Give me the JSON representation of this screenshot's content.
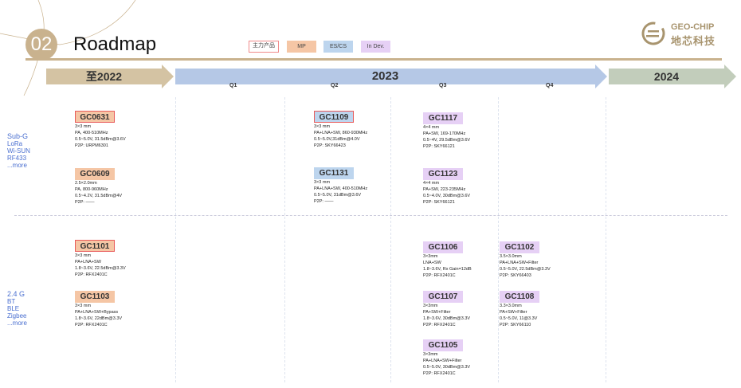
{
  "header": {
    "number": "02",
    "title": "Roadmap"
  },
  "legend": [
    {
      "label": "主力产品",
      "color": "#ffffff"
    },
    {
      "label": "MP",
      "color": "#f5c6a5"
    },
    {
      "label": "ES/CS",
      "color": "#bdd5ee"
    },
    {
      "label": "In Dev.",
      "color": "#e6d0f5"
    }
  ],
  "logo": {
    "en": "GEO-CHIP",
    "cn": "地芯科技"
  },
  "timeline": {
    "periods": [
      "至2022",
      "2023",
      "2024"
    ],
    "quarters": [
      "Q1",
      "Q2",
      "Q3",
      "Q4"
    ]
  },
  "categories": [
    {
      "title": "Sub-G",
      "items": [
        "LoRa",
        "Wi-SUN",
        "RF433",
        "...more"
      ]
    },
    {
      "title": "2.4 G",
      "items": [
        "BT",
        "BLE",
        "Zigbee",
        "...more"
      ]
    }
  ],
  "chips": [
    {
      "name": "GC0631",
      "status": "MP",
      "main": true,
      "lines": [
        "3×3 mm",
        "PA, 400-510MHz",
        "0.5~5.0V, 31.5dBm@3.6V",
        "P2P: URPM6301"
      ]
    },
    {
      "name": "GC0609",
      "status": "MP",
      "main": false,
      "lines": [
        "2.5×2.0mm",
        "PA, 800-960MHz",
        "0.5~4.2V, 31.5dBm@4V",
        "P2P: ——"
      ]
    },
    {
      "name": "GC1109",
      "status": "ES/CS",
      "main": true,
      "lines": [
        "3×3 mm",
        "PA+LNA+SW, 860-930MHz",
        "0.5~5.0V,31dBm@4.0V",
        "P2P: SKY66423"
      ]
    },
    {
      "name": "GC1131",
      "status": "ES/CS",
      "main": false,
      "lines": [
        "3×3 mm",
        "PA+LNA+SW, 400-510MHz",
        "0.5~5.0V, 31dBm@3.6V",
        "P2P: ——"
      ]
    },
    {
      "name": "GC1117",
      "status": "In Dev.",
      "main": false,
      "lines": [
        "4×4 mm",
        "PA+SW, 169-170MHz",
        "0.5~4V, 29.5dBm@3.6V",
        "P2P: SKY66121"
      ]
    },
    {
      "name": "GC1123",
      "status": "In Dev.",
      "main": false,
      "lines": [
        "4×4 mm",
        "PA+SW, 223-235MHz",
        "0.5~4.0V, 30dBm@3.6V",
        "P2P: SKY66121"
      ]
    },
    {
      "name": "GC1101",
      "status": "MP",
      "main": true,
      "lines": [
        "3×3 mm",
        "PA+LNA+SW",
        "1.8~3.6V, 22.5dBm@3.3V",
        "P2P: RFX2401C"
      ]
    },
    {
      "name": "GC1103",
      "status": "MP",
      "main": false,
      "lines": [
        "3×3 mm",
        "PA+LNA+SW+Bypass",
        "1.8~3.6V, 22dBm@3.3V",
        "P2P: RFX2401C"
      ]
    },
    {
      "name": "GC1106",
      "status": "In Dev.",
      "main": false,
      "lines": [
        "3×3mm",
        "LNA+SW",
        "1.8~3.6V, Rx Gain=12dB",
        "P2P: RFX2401C"
      ]
    },
    {
      "name": "GC1107",
      "status": "In Dev.",
      "main": false,
      "lines": [
        "3×3mm",
        "PA+SW+Filter",
        "1.8~3.6V, 30dBm@3.3V",
        "P2P: RFX2401C"
      ]
    },
    {
      "name": "GC1105",
      "status": "In Dev.",
      "main": false,
      "lines": [
        "3×3mm",
        "PA+LNA+SW+Filter",
        "0.5~5.0V, 30dBm@3.3V",
        "P2P: RFX2401C"
      ]
    },
    {
      "name": "GC1102",
      "status": "In Dev.",
      "main": false,
      "lines": [
        "3.5×3.0mm",
        "PA+LNA+SW+Filter",
        "0.5~5.0V, 22.5dBm@3.3V",
        "P2P: SKY66403"
      ]
    },
    {
      "name": "GC1108",
      "status": "In Dev.",
      "main": false,
      "lines": [
        "3.3×3.0mm",
        "PA+SW+Filter",
        "0.5~5.0V, 11@3.3V",
        "P2P: SKY66110"
      ]
    }
  ]
}
